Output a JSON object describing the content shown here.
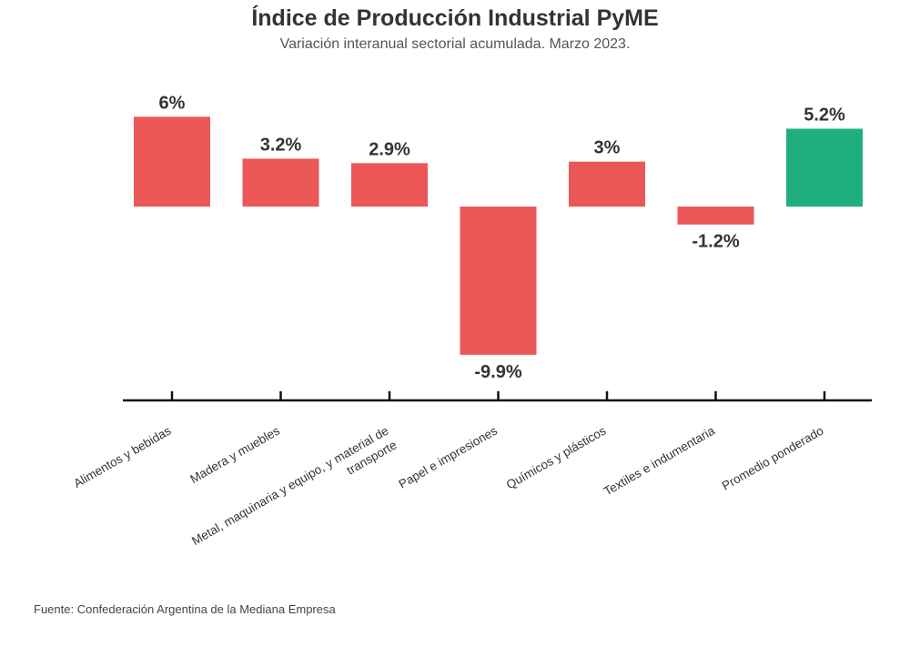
{
  "chart_data": {
    "type": "bar",
    "title": "Índice de Producción Industrial PyME",
    "subtitle": "Variación interanual sectorial acumulada. Marzo 2023.",
    "categories": [
      "Alimentos y bebidas",
      "Madera y muebles",
      "Metal, maquinaria y equipo, y material de transporte",
      "Papel e impresiones",
      "Químicos y plásticos",
      "Textiles e indumentaria",
      "Promedio ponderado"
    ],
    "category_lines": [
      [
        "Alimentos y bebidas"
      ],
      [
        "Madera y muebles"
      ],
      [
        "Metal, maquinaria y equipo, y material de",
        "transporte"
      ],
      [
        "Papel e impresiones"
      ],
      [
        "Químicos y plásticos"
      ],
      [
        "Textiles e indumentaria"
      ],
      [
        "Promedio ponderado"
      ]
    ],
    "values": [
      6,
      3.2,
      2.9,
      -9.9,
      3,
      -1.2,
      5.2
    ],
    "value_labels": [
      "6%",
      "3.2%",
      "2.9%",
      "-9.9%",
      "3%",
      "-1.2%",
      "5.2%"
    ],
    "bar_colors": [
      "#eb5757",
      "#eb5757",
      "#eb5757",
      "#eb5757",
      "#eb5757",
      "#eb5757",
      "#1faf7c"
    ],
    "ylim": [
      -12.5,
      8
    ],
    "xlabel": "",
    "ylabel": "",
    "grid": false,
    "legend": "none"
  },
  "source": "Fuente: Confederación Argentina de la Mediana Empresa"
}
